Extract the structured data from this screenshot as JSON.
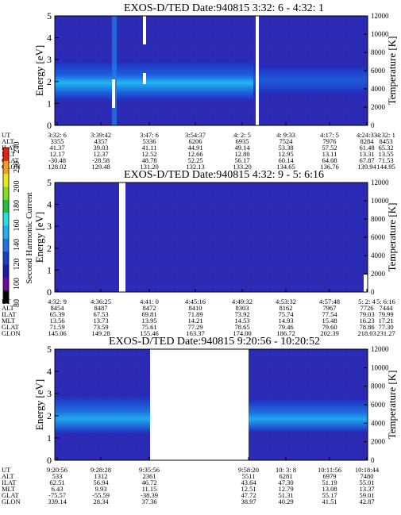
{
  "colorbar": {
    "label": "Second Harmonic Current",
    "ticks": [
      "80",
      "100",
      "120",
      "140",
      "160",
      "180",
      "200",
      "220",
      "240"
    ],
    "colors": [
      "#000000",
      "#6a0aa0",
      "#1a1aa8",
      "#1e3cc8",
      "#2070e8",
      "#20b0f0",
      "#20e0e0",
      "#20c040",
      "#80e020",
      "#e8e820",
      "#f0a020",
      "#e82010"
    ]
  },
  "chart_data": [
    {
      "type": "heatmap",
      "title": "EXOS-D/TED   Date:940815  3:32: 6 - 4:32: 1",
      "ylabel": "Energy [eV]",
      "y2label": "Temperature [K]",
      "ylim": [
        0,
        5
      ],
      "y2lim": [
        0,
        12000
      ],
      "yticks": [
        "0",
        "1",
        "2",
        "3",
        "4",
        "5"
      ],
      "y2ticks": [
        "0",
        "2000",
        "4000",
        "6000",
        "8000",
        "10000",
        "12000"
      ],
      "ephem_labels": [
        "UT",
        "ALT",
        "ILAT",
        "MLT",
        "GLAT",
        "GLON"
      ],
      "columns": [
        [
          "3:32: 6",
          "3355",
          "41.37",
          "12.17",
          "-30.48",
          "128.02"
        ],
        [
          "3:39:42",
          "4357",
          "39.03",
          "12.37",
          "-28.58",
          "129.48"
        ],
        [
          "3:47: 6",
          "5336",
          "41.11",
          "12.52",
          "48.78",
          "131.20"
        ],
        [
          "3:54:37",
          "6206",
          "44.91",
          "12.66",
          "52.25",
          "132.13"
        ],
        [
          "4: 2: 5",
          "6935",
          "49.14",
          "12.80",
          "56.17",
          "133.20"
        ],
        [
          "4: 9:33",
          "7524",
          "53.38",
          "12.95",
          "60.14",
          "134.65"
        ],
        [
          "4:17: 5",
          "7976",
          "57.52",
          "13.11",
          "64.08",
          "136.76"
        ],
        [
          "4:24:33",
          "8284",
          "61.48",
          "13.31",
          "67.87",
          "139.94"
        ],
        [
          "4:32: 1",
          "8453",
          "65.32",
          "13.55",
          "71.53",
          "144.95"
        ]
      ]
    },
    {
      "type": "heatmap",
      "title": "EXOS-D/TED   Date:940815  4:32: 9 - 5: 6:16",
      "ylabel": "Energy [eV]",
      "y2label": "Temperature [K]",
      "ylim": [
        0,
        5
      ],
      "y2lim": [
        0,
        12000
      ],
      "yticks": [
        "0",
        "1",
        "2",
        "3",
        "4",
        "5"
      ],
      "y2ticks": [
        "0",
        "2000",
        "4000",
        "6000",
        "8000",
        "10000",
        "12000"
      ],
      "ephem_labels": [
        "UT",
        "ALT",
        "ILAT",
        "MLT",
        "GLAT",
        "GLON"
      ],
      "columns": [
        [
          "4:32: 9",
          "8454",
          "65.39",
          "13.56",
          "71.59",
          "145.06"
        ],
        [
          "4:36:25",
          "8487",
          "67.53",
          "13.73",
          "73.59",
          "149.28"
        ],
        [
          "4:41: 0",
          "8472",
          "69.81",
          "13.95",
          "75.61",
          "155.46"
        ],
        [
          "4:45:16",
          "8410",
          "71.89",
          "14.21",
          "77.29",
          "163.37"
        ],
        [
          "4:49:32",
          "8303",
          "73.92",
          "14.53",
          "78.65",
          "174.00"
        ],
        [
          "4:53:32",
          "8162",
          "75.74",
          "14.93",
          "79.46",
          "186.72"
        ],
        [
          "4:57:48",
          "7967",
          "77.54",
          "15.48",
          "79.60",
          "202.39"
        ],
        [
          "5: 2: 4",
          "7726",
          "79.03",
          "16.23",
          "78.86",
          "218.03"
        ],
        [
          "5: 6:16",
          "7444",
          "79.99",
          "17.21",
          "77.30",
          "231.27"
        ]
      ]
    },
    {
      "type": "heatmap",
      "title": "EXOS-D/TED   Date:940815  9:20:56 - 10:20:52",
      "ylabel": "Energy [eV]",
      "y2label": "Temperature [K]",
      "ylim": [
        0,
        5
      ],
      "y2lim": [
        0,
        12000
      ],
      "yticks": [
        "0",
        "1",
        "2",
        "3",
        "4",
        "5"
      ],
      "y2ticks": [
        "0",
        "2000",
        "4000",
        "6000",
        "8000",
        "10000",
        "12000"
      ],
      "ephem_labels": [
        "UT",
        "ALT",
        "ILAT",
        "MLT",
        "GLAT",
        "GLON"
      ],
      "columns": [
        [
          "9:20:56",
          "533",
          "62.51",
          "6.43",
          "-75.57",
          "339.14"
        ],
        [
          "9:28:28",
          "1312",
          "56.94",
          "9.93",
          "-55.59",
          "28.34"
        ],
        [
          "9:35:56",
          "2361",
          "46.72",
          "11.15",
          "-38.39",
          "37.36"
        ],
        [
          "9:58:20",
          "5511",
          "43.64",
          "12.51",
          "47.72",
          "38.97"
        ],
        [
          "10: 3: 8",
          "6281",
          "47.30",
          "12.79",
          "51.31",
          "40.29"
        ],
        [
          "10:11:56",
          "6979",
          "51.19",
          "13.08",
          "55.17",
          "41.51"
        ],
        [
          "10:18:44",
          "7480",
          "55.01",
          "13.37",
          "59.01",
          "42.87"
        ]
      ]
    }
  ]
}
